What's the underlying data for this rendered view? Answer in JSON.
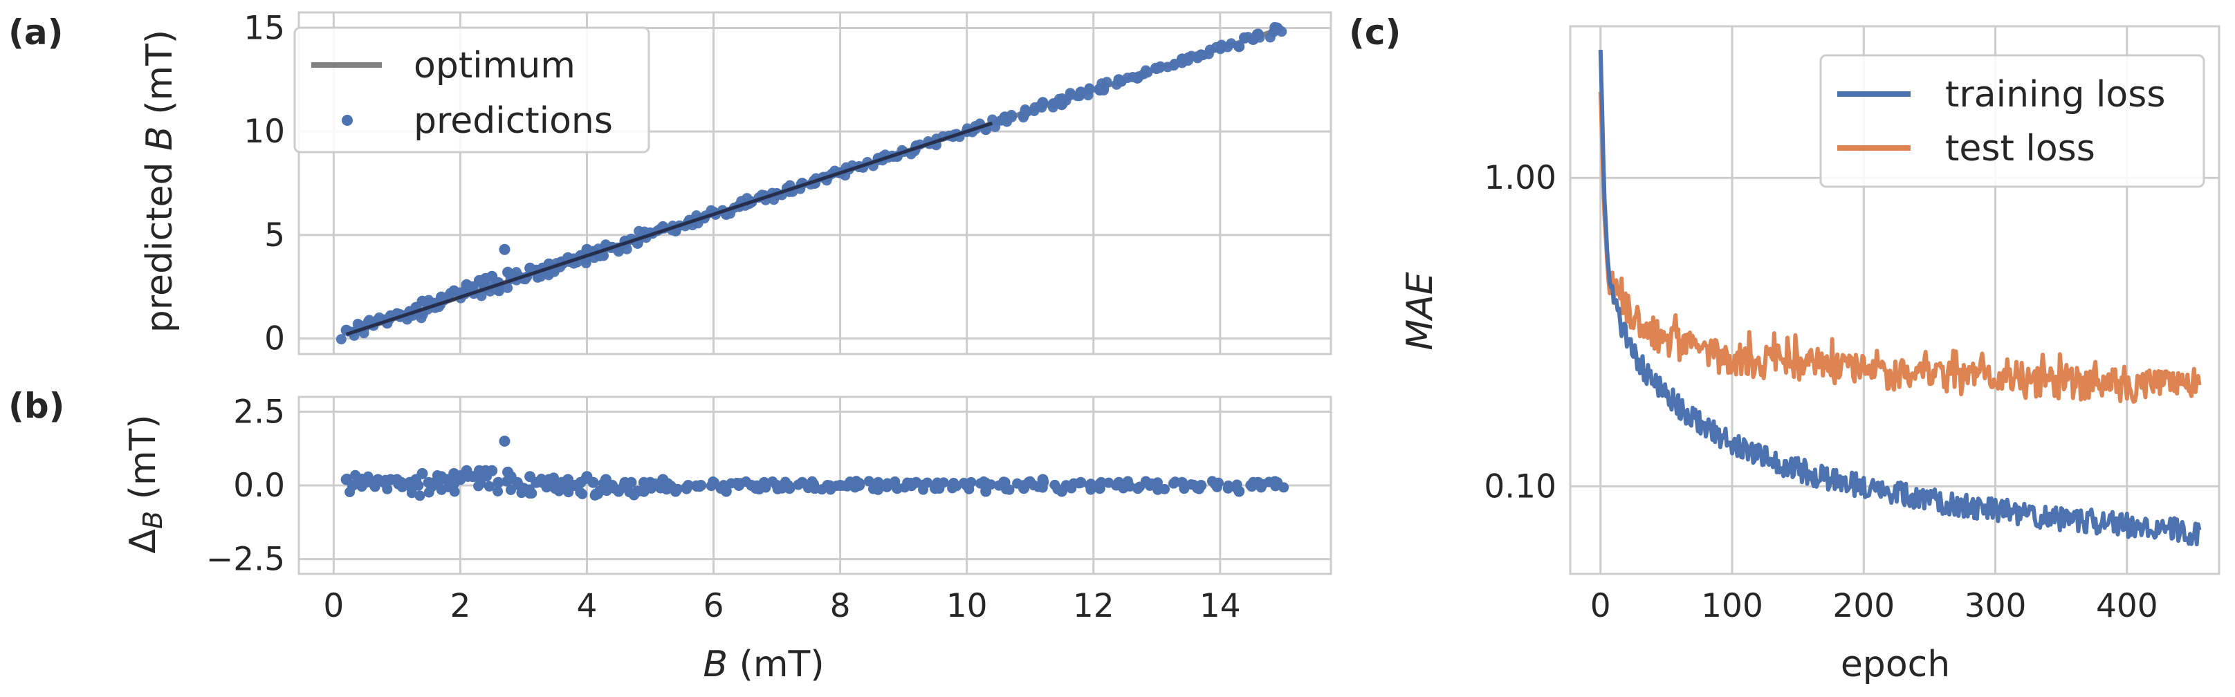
{
  "panels": {
    "a": {
      "letter": "(a)"
    },
    "b": {
      "letter": "(b)"
    },
    "c": {
      "letter": "(c)"
    }
  },
  "chart_data": [
    {
      "id": "a",
      "type": "scatter",
      "xlabel": "",
      "ylabel": "predicted B (mT)",
      "ylabel_parts": {
        "pre": "predicted ",
        "var": "B",
        "post": " (mT)"
      },
      "xlim": [
        -0.55,
        15.75
      ],
      "ylim": [
        -0.75,
        15.75
      ],
      "xticks": [
        0,
        2,
        4,
        6,
        8,
        10,
        12,
        14
      ],
      "yticks": [
        0,
        5,
        10,
        15
      ],
      "ytick_labels": [
        "0",
        "5",
        "10",
        "15"
      ],
      "grid": true,
      "legend": {
        "placement": "top-left",
        "entries": [
          "optimum",
          "predictions"
        ]
      },
      "series": [
        {
          "name": "optimum",
          "kind": "line",
          "color": "#808080",
          "x": [
            0.2,
            15.0
          ],
          "y": [
            0.2,
            15.0
          ]
        },
        {
          "name": "predictions",
          "kind": "scatter",
          "color": "#4c72b0",
          "x": [
            0.2,
            0.3,
            0.4,
            0.5,
            0.6,
            0.7,
            0.8,
            0.9,
            1.0,
            1.1,
            1.2,
            1.3,
            1.4,
            1.5,
            1.6,
            1.7,
            1.8,
            1.9,
            2.0,
            2.1,
            2.2,
            2.3,
            2.4,
            2.5,
            2.6,
            2.7,
            2.75,
            2.8,
            2.9,
            3.0,
            3.1,
            3.2,
            3.3,
            3.4,
            3.5,
            3.6,
            3.7,
            3.8,
            3.9,
            4.0,
            4.1,
            4.2,
            4.3,
            4.4,
            4.5,
            4.6,
            4.7,
            4.8,
            4.9,
            5.0,
            5.2,
            5.4,
            5.6,
            5.8,
            6.0,
            6.2,
            6.4,
            6.6,
            6.8,
            7.0,
            7.2,
            7.4,
            7.6,
            7.8,
            8.0,
            8.3,
            8.6,
            8.9,
            9.2,
            9.5,
            9.8,
            10.0,
            10.3,
            10.6,
            10.9,
            11.2,
            11.5,
            11.8,
            12.1,
            12.4,
            12.7,
            13.4,
            13.7,
            14.3,
            14.6,
            14.9
          ],
          "y": [
            0.4,
            0.3,
            0.5,
            0.6,
            0.7,
            0.9,
            0.9,
            1.1,
            1.2,
            1.1,
            1.3,
            1.5,
            1.8,
            1.6,
            1.7,
            2.0,
            2.0,
            2.3,
            2.2,
            2.6,
            2.5,
            2.8,
            2.9,
            3.0,
            2.7,
            4.3,
            3.2,
            3.1,
            3.0,
            2.9,
            3.4,
            3.3,
            3.4,
            3.6,
            3.4,
            3.7,
            3.9,
            3.8,
            4.0,
            4.3,
            4.2,
            4.0,
            4.5,
            4.4,
            4.3,
            4.7,
            4.8,
            4.6,
            5.0,
            5.1,
            5.4,
            5.2,
            5.6,
            5.8,
            6.1,
            6.0,
            6.4,
            6.6,
            6.9,
            7.0,
            7.1,
            7.5,
            7.5,
            7.8,
            8.0,
            8.3,
            8.7,
            8.8,
            9.3,
            9.4,
            9.8,
            10.0,
            10.1,
            10.7,
            10.8,
            11.4,
            11.3,
            11.9,
            12.0,
            12.5,
            12.6,
            13.5,
            13.7,
            14.1,
            14.7,
            15.0
          ]
        }
      ]
    },
    {
      "id": "b",
      "type": "scatter",
      "xlabel": "B (mT)",
      "xlabel_parts": {
        "pre": "",
        "var": "B",
        "post": " (mT)"
      },
      "ylabel": "ΔB (mT)",
      "ylabel_parts": {
        "sym": "Δ",
        "sub": "B",
        "post": " (mT)"
      },
      "xlim": [
        -0.55,
        15.75
      ],
      "ylim": [
        -3.0,
        3.0
      ],
      "xticks": [
        0,
        2,
        4,
        6,
        8,
        10,
        12,
        14
      ],
      "xtick_labels": [
        "0",
        "2",
        "4",
        "6",
        "8",
        "10",
        "12",
        "14"
      ],
      "yticks": [
        2.5,
        0.0,
        -2.5
      ],
      "ytick_labels": [
        "2.5",
        "0.0",
        "−2.5"
      ],
      "grid": true,
      "series": [
        {
          "name": "",
          "kind": "scatter",
          "color": "#4c72b0",
          "x": [
            0.2,
            0.3,
            0.4,
            0.5,
            0.6,
            0.7,
            0.8,
            0.9,
            1.0,
            1.1,
            1.2,
            1.3,
            1.4,
            1.5,
            1.6,
            1.7,
            1.8,
            1.9,
            2.0,
            2.1,
            2.2,
            2.3,
            2.4,
            2.5,
            2.6,
            2.7,
            2.75,
            2.8,
            2.9,
            3.0,
            3.1,
            3.2,
            3.3,
            3.4,
            3.5,
            3.6,
            3.7,
            3.8,
            3.9,
            4.0,
            4.1,
            4.2,
            4.3,
            4.4,
            4.5,
            4.6,
            4.7,
            4.8,
            4.9,
            5.0,
            5.2,
            5.4,
            5.6,
            5.8,
            6.0,
            6.2,
            6.4,
            6.6,
            6.8,
            7.0,
            7.2,
            7.4,
            7.6,
            7.8,
            8.0,
            8.3,
            8.6,
            8.9,
            9.2,
            9.5,
            9.8,
            10.0,
            10.3,
            10.6,
            10.9,
            11.2,
            11.5,
            11.8,
            12.1,
            12.4,
            12.7,
            13.4,
            13.7,
            14.3,
            14.6,
            14.9
          ],
          "y": [
            0.2,
            0.0,
            0.1,
            0.1,
            0.1,
            0.2,
            0.1,
            0.2,
            0.2,
            0.0,
            0.1,
            0.2,
            0.4,
            0.1,
            0.1,
            0.3,
            0.2,
            0.4,
            0.2,
            0.5,
            0.3,
            0.5,
            0.5,
            0.5,
            0.1,
            1.5,
            0.45,
            0.3,
            0.1,
            -0.1,
            0.3,
            0.1,
            0.1,
            0.2,
            -0.1,
            0.1,
            0.2,
            0.0,
            0.1,
            0.3,
            0.1,
            -0.2,
            0.2,
            0.0,
            -0.2,
            0.1,
            0.1,
            -0.2,
            0.1,
            0.1,
            0.2,
            -0.2,
            0.0,
            0.0,
            0.1,
            -0.2,
            0.0,
            0.0,
            0.1,
            0.0,
            -0.1,
            0.1,
            -0.1,
            0.0,
            0.0,
            0.0,
            0.1,
            -0.1,
            0.1,
            -0.1,
            0.0,
            0.0,
            -0.2,
            0.1,
            -0.1,
            0.2,
            -0.2,
            0.1,
            -0.1,
            0.1,
            -0.1,
            0.1,
            0.0,
            -0.2,
            0.1,
            0.1
          ]
        }
      ]
    },
    {
      "id": "c",
      "type": "line",
      "xlabel": "epoch",
      "ylabel": "MAE",
      "yscale": "log",
      "xlim": [
        -23,
        470
      ],
      "ylim": [
        0.052,
        3.1
      ],
      "xticks": [
        0,
        100,
        200,
        300,
        400
      ],
      "xtick_labels": [
        "0",
        "100",
        "200",
        "300",
        "400"
      ],
      "yticks": [
        1.0,
        0.1
      ],
      "ytick_labels": [
        "1.00",
        "0.10"
      ],
      "grid": true,
      "legend": {
        "placement": "top-right",
        "entries": [
          "training loss",
          "test loss"
        ]
      },
      "series": [
        {
          "name": "training loss",
          "color": "#4c72b0",
          "x": [
            0,
            1,
            2,
            3,
            5,
            7,
            10,
            15,
            20,
            25,
            30,
            40,
            50,
            60,
            70,
            80,
            100,
            120,
            140,
            160,
            180,
            200,
            220,
            240,
            260,
            280,
            300,
            320,
            340,
            360,
            380,
            400,
            420,
            440,
            455
          ],
          "y": [
            2.6,
            1.8,
            1.2,
            0.85,
            0.6,
            0.48,
            0.4,
            0.34,
            0.3,
            0.27,
            0.25,
            0.22,
            0.2,
            0.18,
            0.165,
            0.155,
            0.14,
            0.128,
            0.118,
            0.11,
            0.105,
            0.1,
            0.096,
            0.092,
            0.089,
            0.086,
            0.084,
            0.082,
            0.08,
            0.078,
            0.077,
            0.075,
            0.074,
            0.072,
            0.07
          ]
        },
        {
          "name": "test loss",
          "color": "#dd8452",
          "x": [
            0,
            1,
            2,
            3,
            5,
            7,
            10,
            15,
            20,
            25,
            30,
            40,
            50,
            60,
            70,
            80,
            100,
            120,
            140,
            160,
            180,
            200,
            220,
            240,
            260,
            280,
            300,
            320,
            340,
            360,
            380,
            400,
            420,
            440,
            455
          ],
          "y": [
            1.9,
            1.4,
            1.0,
            0.75,
            0.55,
            0.47,
            0.43,
            0.4,
            0.38,
            0.36,
            0.34,
            0.31,
            0.3,
            0.29,
            0.28,
            0.27,
            0.26,
            0.255,
            0.25,
            0.245,
            0.24,
            0.235,
            0.232,
            0.23,
            0.228,
            0.225,
            0.222,
            0.22,
            0.218,
            0.216,
            0.214,
            0.213,
            0.212,
            0.21,
            0.205
          ]
        }
      ]
    }
  ]
}
